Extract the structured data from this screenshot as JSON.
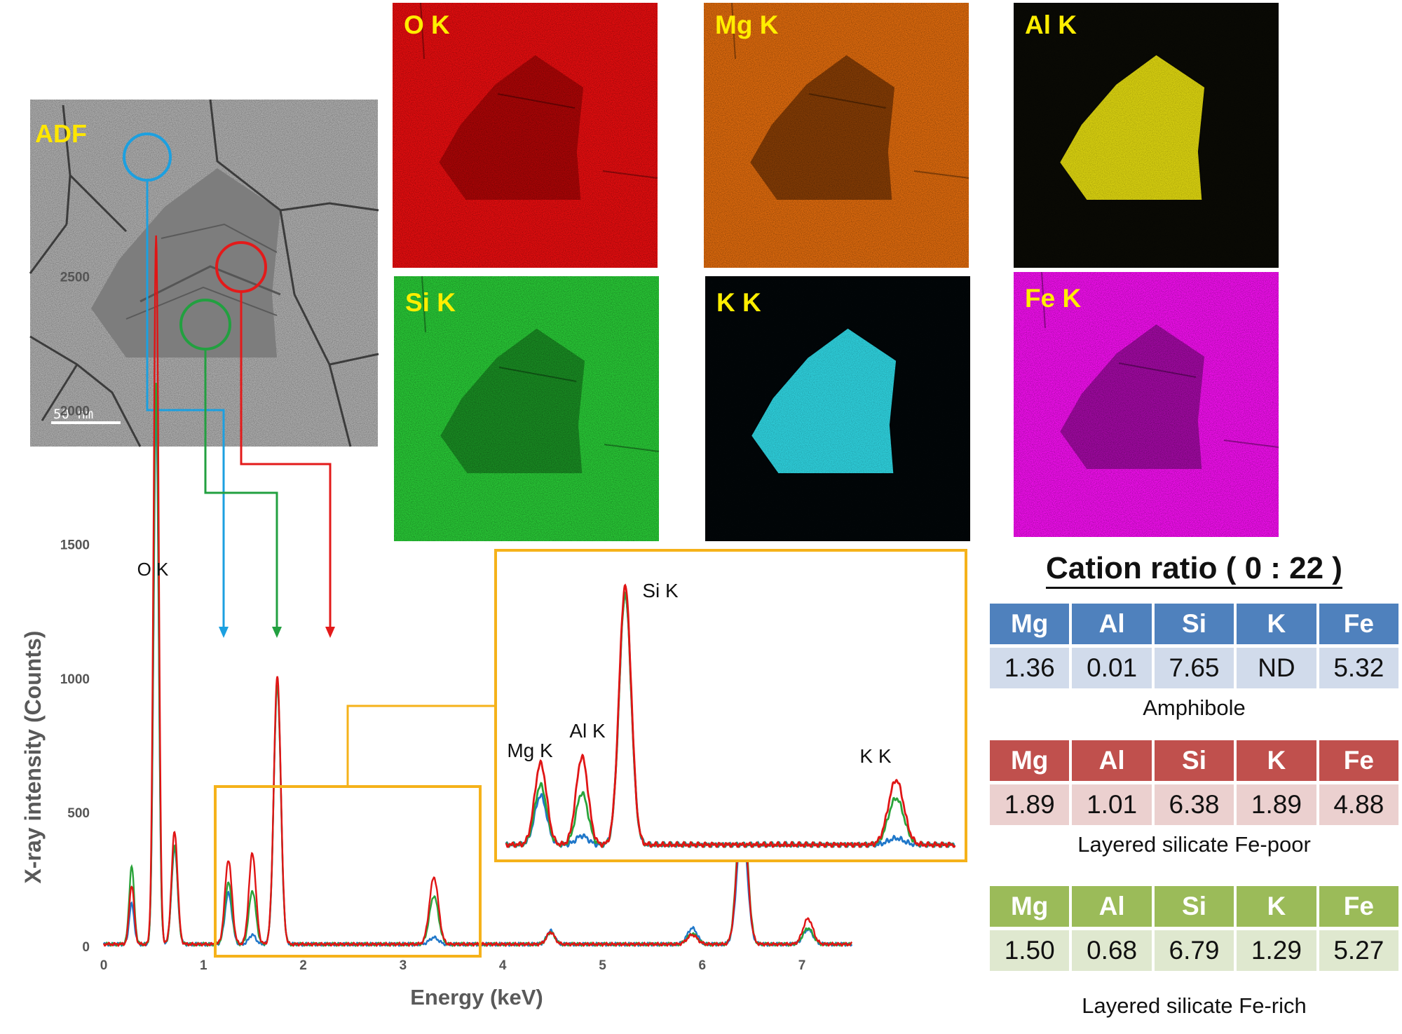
{
  "adf": {
    "label": "ADF",
    "scale_bar": "50 nm"
  },
  "maps": [
    {
      "label": "O K",
      "color": "#e8141a",
      "base": "#e10d0f",
      "dark": "#7a0000"
    },
    {
      "label": "Mg K",
      "color": "#e8770e",
      "base": "#d9680d",
      "dark": "#3a1500"
    },
    {
      "label": "Al K",
      "color": "#dddd10",
      "base": "#0a0a05",
      "dark": "#e0d810"
    },
    {
      "label": "Si K",
      "color": "#27c432",
      "base": "#28c435",
      "dark": "#0c5a12"
    },
    {
      "label": "K K",
      "color": "#2ad4e4",
      "base": "#020608",
      "dark": "#2fd6e3"
    },
    {
      "label": "Fe K",
      "color": "#ee11ee",
      "base": "#ec0fe8",
      "dark": "#5e0562"
    }
  ],
  "chart_data": {
    "type": "line",
    "xlabel": "Energy (keV)",
    "ylabel": "X-ray intensity (Counts)",
    "xlim": [
      0,
      8
    ],
    "ylim": [
      0,
      2700
    ],
    "x_ticks": [
      "0",
      "1",
      "2",
      "3",
      "4",
      "5",
      "6",
      "7"
    ],
    "y_ticks": [
      "0",
      "500",
      "1000",
      "1500",
      "2000",
      "2500"
    ],
    "peaks_labels": {
      "main": "O K",
      "inset": [
        "Mg K",
        "Al K",
        "Si K",
        "K K"
      ]
    },
    "peaks": [
      {
        "name": "C",
        "energy": 0.28,
        "width": 0.025
      },
      {
        "name": "O",
        "energy": 0.525,
        "width": 0.025
      },
      {
        "name": "Fe L",
        "energy": 0.71,
        "width": 0.03
      },
      {
        "name": "Mg",
        "energy": 1.25,
        "width": 0.035
      },
      {
        "name": "Al",
        "energy": 1.49,
        "width": 0.035
      },
      {
        "name": "Si",
        "energy": 1.74,
        "width": 0.035
      },
      {
        "name": "K",
        "energy": 3.31,
        "width": 0.045
      },
      {
        "name": "Ca",
        "energy": 4.48,
        "width": 0.04
      },
      {
        "name": "Mn",
        "energy": 5.9,
        "width": 0.05
      },
      {
        "name": "Fe",
        "energy": 6.4,
        "width": 0.05
      },
      {
        "name": "FeKb",
        "energy": 7.06,
        "width": 0.05
      }
    ],
    "series": [
      {
        "color": "#1f77c9",
        "values": [
          150,
          2000,
          360,
          190,
          35,
          970,
          25,
          50,
          60,
          460,
          55
        ]
      },
      {
        "color": "#2aa33a",
        "values": [
          290,
          2100,
          370,
          230,
          200,
          970,
          180,
          45,
          40,
          590,
          60
        ]
      },
      {
        "color": "#e01515",
        "values": [
          220,
          2650,
          420,
          315,
          340,
          1000,
          250,
          45,
          35,
          540,
          95
        ]
      }
    ]
  },
  "cation_ratio": {
    "title": "Cation ratio ( 0 : 22 )",
    "headers": [
      "Mg",
      "Al",
      "Si",
      "K",
      "Fe"
    ],
    "tables": [
      {
        "caption": "Amphibole",
        "values": [
          "1.36",
          "0.01",
          "7.65",
          "ND",
          "5.32"
        ],
        "header_color": "#4f81bd",
        "value_color": "#d1dbeb"
      },
      {
        "caption": "Layered silicate Fe-poor",
        "values": [
          "1.89",
          "1.01",
          "6.38",
          "1.89",
          "4.88"
        ],
        "header_color": "#c0504d",
        "value_color": "#ebd0cf"
      },
      {
        "caption": "Layered silicate Fe-rich",
        "values": [
          "1.50",
          "0.68",
          "6.79",
          "1.29",
          "5.27"
        ],
        "header_color": "#9bbb59",
        "value_color": "#dfe8cf"
      }
    ]
  }
}
